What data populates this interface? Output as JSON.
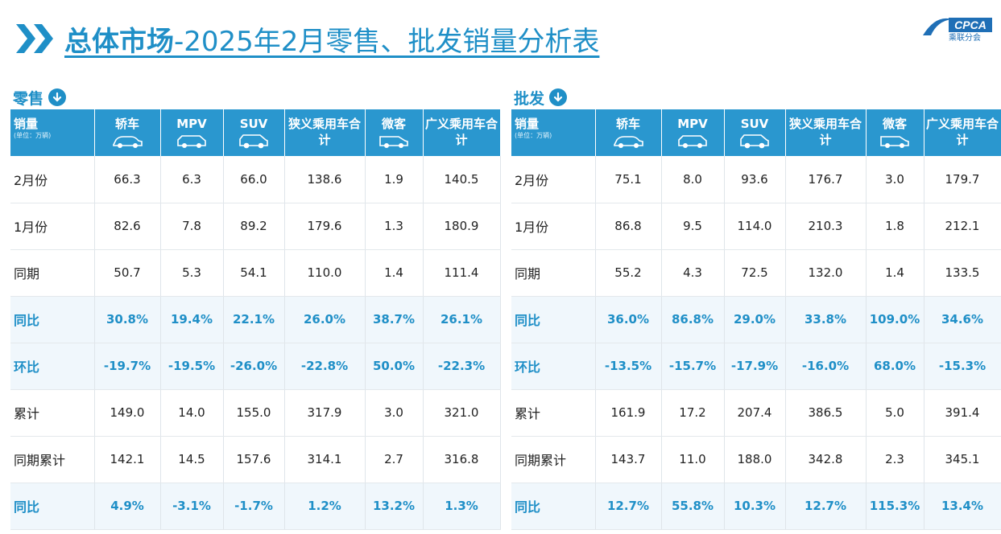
{
  "title": {
    "bold": "总体市场",
    "rest": "-2025年2月零售、批发销量分析表"
  },
  "logo": {
    "brand": "CPCA",
    "text": "乘联分会"
  },
  "retail": {
    "section": "零售",
    "headers": {
      "metric": "销量",
      "unit": "(单位：万辆)",
      "cols": [
        "轿车",
        "MPV",
        "SUV",
        "狭义乘用车合计",
        "微客",
        "广义乘用车合计"
      ]
    },
    "rows": [
      {
        "label": "2月份",
        "hl": false,
        "cells": [
          "66.3",
          "6.3",
          "66.0",
          "138.6",
          "1.9",
          "140.5"
        ]
      },
      {
        "label": "1月份",
        "hl": false,
        "cells": [
          "82.6",
          "7.8",
          "89.2",
          "179.6",
          "1.3",
          "180.9"
        ]
      },
      {
        "label": "同期",
        "hl": false,
        "cells": [
          "50.7",
          "5.3",
          "54.1",
          "110.0",
          "1.4",
          "111.4"
        ]
      },
      {
        "label": "同比",
        "hl": true,
        "cells": [
          "30.8%",
          "19.4%",
          "22.1%",
          "26.0%",
          "38.7%",
          "26.1%"
        ]
      },
      {
        "label": "环比",
        "hl": true,
        "cells": [
          "-19.7%",
          "-19.5%",
          "-26.0%",
          "-22.8%",
          "50.0%",
          "-22.3%"
        ]
      },
      {
        "label": "累计",
        "hl": false,
        "cells": [
          "149.0",
          "14.0",
          "155.0",
          "317.9",
          "3.0",
          "321.0"
        ]
      },
      {
        "label": "同期累计",
        "hl": false,
        "cells": [
          "142.1",
          "14.5",
          "157.6",
          "314.1",
          "2.7",
          "316.8"
        ]
      },
      {
        "label": "同比",
        "hl": true,
        "cells": [
          "4.9%",
          "-3.1%",
          "-1.7%",
          "1.2%",
          "13.2%",
          "1.3%"
        ]
      }
    ]
  },
  "wholesale": {
    "section": "批发",
    "headers": {
      "metric": "销量",
      "unit": "(单位：万辆)",
      "cols": [
        "轿车",
        "MPV",
        "SUV",
        "狭义乘用车合计",
        "微客",
        "广义乘用车合计"
      ]
    },
    "rows": [
      {
        "label": "2月份",
        "hl": false,
        "cells": [
          "75.1",
          "8.0",
          "93.6",
          "176.7",
          "3.0",
          "179.7"
        ]
      },
      {
        "label": "1月份",
        "hl": false,
        "cells": [
          "86.8",
          "9.5",
          "114.0",
          "210.3",
          "1.8",
          "212.1"
        ]
      },
      {
        "label": "同期",
        "hl": false,
        "cells": [
          "55.2",
          "4.3",
          "72.5",
          "132.0",
          "1.4",
          "133.5"
        ]
      },
      {
        "label": "同比",
        "hl": true,
        "cells": [
          "36.0%",
          "86.8%",
          "29.0%",
          "33.8%",
          "109.0%",
          "34.6%"
        ]
      },
      {
        "label": "环比",
        "hl": true,
        "cells": [
          "-13.5%",
          "-15.7%",
          "-17.9%",
          "-16.0%",
          "68.0%",
          "-15.3%"
        ]
      },
      {
        "label": "累计",
        "hl": false,
        "cells": [
          "161.9",
          "17.2",
          "207.4",
          "386.5",
          "5.0",
          "391.4"
        ]
      },
      {
        "label": "同期累计",
        "hl": false,
        "cells": [
          "143.7",
          "11.0",
          "188.0",
          "342.8",
          "2.3",
          "345.1"
        ]
      },
      {
        "label": "同比",
        "hl": true,
        "cells": [
          "12.7%",
          "55.8%",
          "10.3%",
          "12.7%",
          "115.3%",
          "13.4%"
        ]
      }
    ]
  },
  "colors": {
    "accent": "#1f8fc7",
    "header_bg": "#2a97cf",
    "highlight_row_bg": "#f0f7fc"
  },
  "icons": [
    "chevron-right-icon",
    "arrow-down-circle-icon",
    "sedan-icon",
    "mpv-icon",
    "suv-icon",
    "van-icon"
  ]
}
